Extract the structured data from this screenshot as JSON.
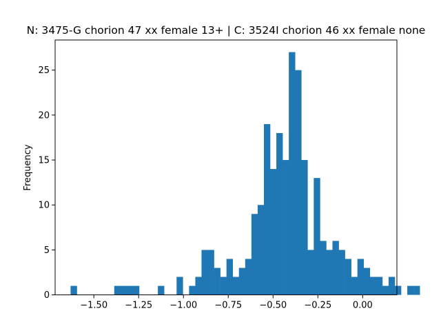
{
  "chart_data": {
    "type": "histogram",
    "title": "N: 3475-G chorion 47 xx female 13+ | C: 3524I chorion 46 xx female none",
    "xlabel": "",
    "ylabel": "Frequency",
    "xlim": [
      -1.716,
      0.191
    ],
    "ylim": [
      0,
      28.35
    ],
    "bar_color": "#1f77b4",
    "grid": false,
    "x_ticks": [
      {
        "value": -1.5,
        "label": "−1.50"
      },
      {
        "value": -1.25,
        "label": "−1.25"
      },
      {
        "value": -1.0,
        "label": "−1.00"
      },
      {
        "value": -0.75,
        "label": "−0.75"
      },
      {
        "value": -0.5,
        "label": "−0.50"
      },
      {
        "value": -0.25,
        "label": "−0.25"
      },
      {
        "value": 0.0,
        "label": "0.00"
      }
    ],
    "y_ticks": [
      {
        "value": 0,
        "label": "0"
      },
      {
        "value": 5,
        "label": "5"
      },
      {
        "value": 10,
        "label": "10"
      },
      {
        "value": 15,
        "label": "15"
      },
      {
        "value": 20,
        "label": "20"
      },
      {
        "value": 25,
        "label": "25"
      }
    ],
    "bin_start": -1.6297,
    "bin_width": 0.03479,
    "counts": [
      1,
      0,
      0,
      0,
      0,
      0,
      0,
      1,
      1,
      1,
      1,
      0,
      0,
      0,
      1,
      0,
      0,
      2,
      0,
      1,
      2,
      5,
      5,
      3,
      2,
      4,
      2,
      3,
      4,
      9,
      10,
      19,
      14,
      18,
      15,
      27,
      25,
      15,
      5,
      13,
      6,
      5,
      6,
      5,
      4,
      2,
      4,
      3,
      2,
      2,
      1,
      2,
      1,
      0,
      1,
      1
    ]
  }
}
